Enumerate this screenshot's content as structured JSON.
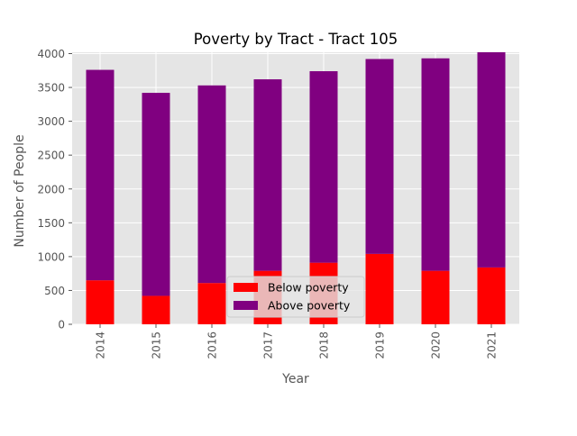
{
  "chart_data": {
    "type": "bar",
    "stacked": true,
    "title": "Poverty by Tract - Tract 105",
    "xlabel": "Year",
    "ylabel": "Number of People",
    "categories": [
      "2014",
      "2015",
      "2016",
      "2017",
      "2018",
      "2019",
      "2020",
      "2021"
    ],
    "series": [
      {
        "name": "Below poverty",
        "color": "#ff0000",
        "values": [
          650,
          420,
          610,
          790,
          910,
          1040,
          790,
          840
        ]
      },
      {
        "name": "Above poverty",
        "color": "#800080",
        "values": [
          3110,
          3000,
          2920,
          2830,
          2830,
          2880,
          3140,
          3180
        ]
      }
    ],
    "ylim": [
      0,
      4020
    ],
    "yticks": [
      0,
      500,
      1000,
      1500,
      2000,
      2500,
      3000,
      3500,
      4000
    ],
    "grid": true,
    "legend_position": "lower-center",
    "background_color": "#e5e5e5"
  }
}
